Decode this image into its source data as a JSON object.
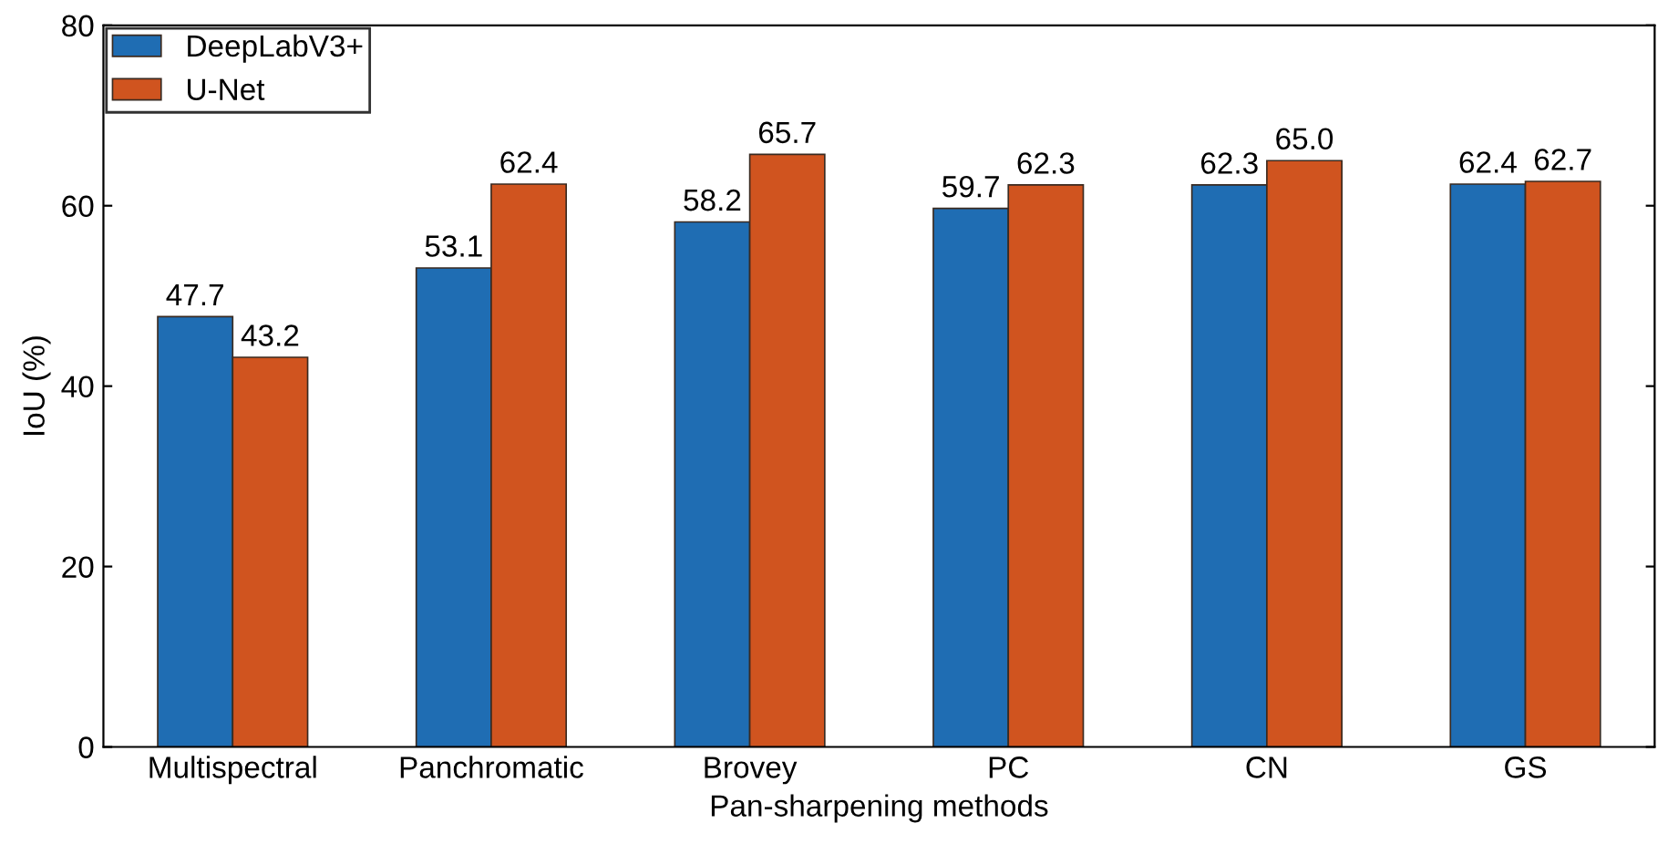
{
  "chart_data": {
    "type": "bar",
    "xlabel": "Pan-sharpening methods",
    "ylabel": "IoU (%)",
    "categories": [
      "Multispectral",
      "Panchromatic",
      "Brovey",
      "PC",
      "CN",
      "GS"
    ],
    "series": [
      {
        "name": "DeepLabV3+",
        "color": "#1f6db3",
        "values": [
          47.7,
          53.1,
          58.2,
          59.7,
          62.3,
          62.4
        ],
        "value_labels": [
          "47.7",
          "53.1",
          "58.2",
          "59.7",
          "62.3",
          "62.4"
        ]
      },
      {
        "name": "U-Net",
        "color": "#d0541f",
        "values": [
          43.2,
          62.4,
          65.7,
          62.3,
          65.0,
          62.7
        ],
        "value_labels": [
          "43.2",
          "62.4",
          "65.7",
          "62.3",
          "65.0",
          "62.7"
        ]
      }
    ],
    "ylim": [
      0,
      80
    ],
    "yticks": [
      0,
      20,
      40,
      60,
      80
    ],
    "grid": false,
    "legend": "top left"
  }
}
